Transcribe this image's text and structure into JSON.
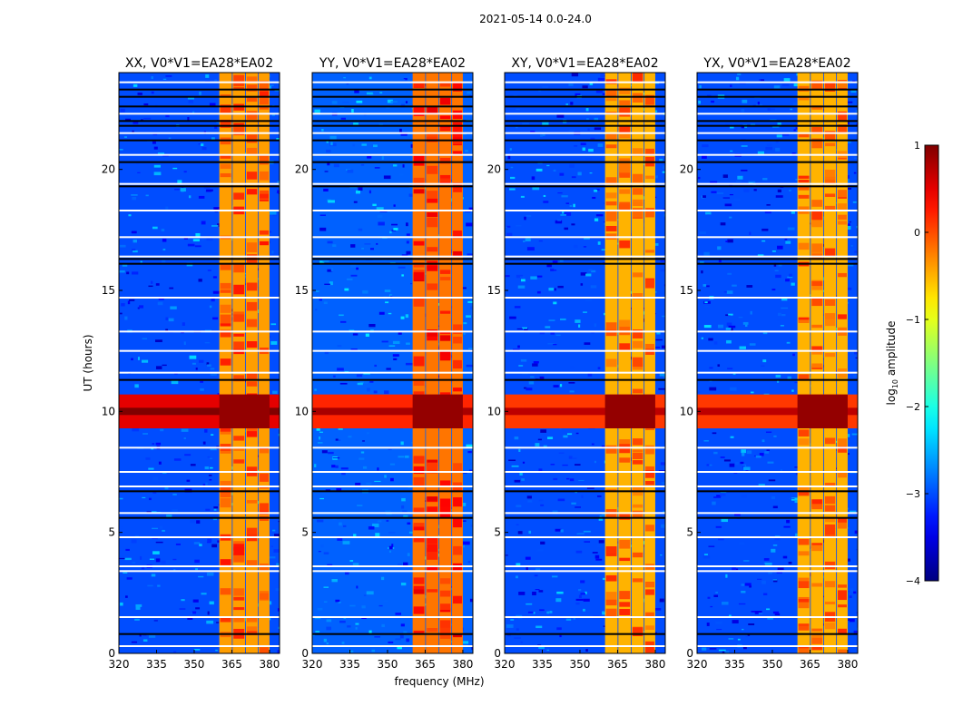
{
  "chart_data": {
    "type": "heatmap",
    "suptitle": "2021-05-14 0.0-24.0",
    "xlabel": "frequency (MHz)",
    "ylabel": "UT (hours)",
    "xlim": [
      320,
      384
    ],
    "ylim": [
      0,
      24
    ],
    "xticks": [
      320,
      335,
      350,
      365,
      380
    ],
    "yticks": [
      0,
      5,
      10,
      15,
      20
    ],
    "panels": [
      {
        "title": "XX, V0*V1=EA28*EA02",
        "rfi_level": -0.4,
        "burst_level": 0.8,
        "base_level": -3.0
      },
      {
        "title": "YY, V0*V1=EA28*EA02",
        "rfi_level": -0.2,
        "burst_level": 0.5,
        "base_level": -2.9
      },
      {
        "title": "XY, V0*V1=EA28*EA02",
        "rfi_level": -0.5,
        "burst_level": 0.4,
        "base_level": -3.0
      },
      {
        "title": "YX, V0*V1=EA28*EA02",
        "rfi_level": -0.5,
        "burst_level": 0.4,
        "base_level": -3.0
      }
    ],
    "rfi_subbands": [
      [
        360,
        365
      ],
      [
        365.3,
        370.3
      ],
      [
        370.6,
        375.4
      ],
      [
        375.7,
        380
      ]
    ],
    "burst_time_range": [
      9.3,
      10.7
    ],
    "flagged_rows_white": [
      0.3,
      1.5,
      3.4,
      3.6,
      4.8,
      5.8,
      6.9,
      7.5,
      8.5,
      11.6,
      12.5,
      13.3,
      14.7,
      16.4,
      17.2,
      18.3,
      19.4,
      20.6,
      21.5,
      22.3,
      23.6
    ],
    "flagged_rows_black": [
      0.8,
      5.6,
      6.7,
      11.3,
      16.1,
      16.3,
      19.3,
      20.3,
      21.2,
      21.8,
      22.0,
      22.6,
      23.0,
      23.3
    ],
    "colorbar": {
      "label": "log10 amplitude",
      "label_main": "log",
      "label_sub": "10",
      "label_rest": " amplitude",
      "range": [
        -4,
        1
      ],
      "ticks": [
        1,
        0,
        -1,
        -2,
        -3,
        -4
      ]
    }
  }
}
